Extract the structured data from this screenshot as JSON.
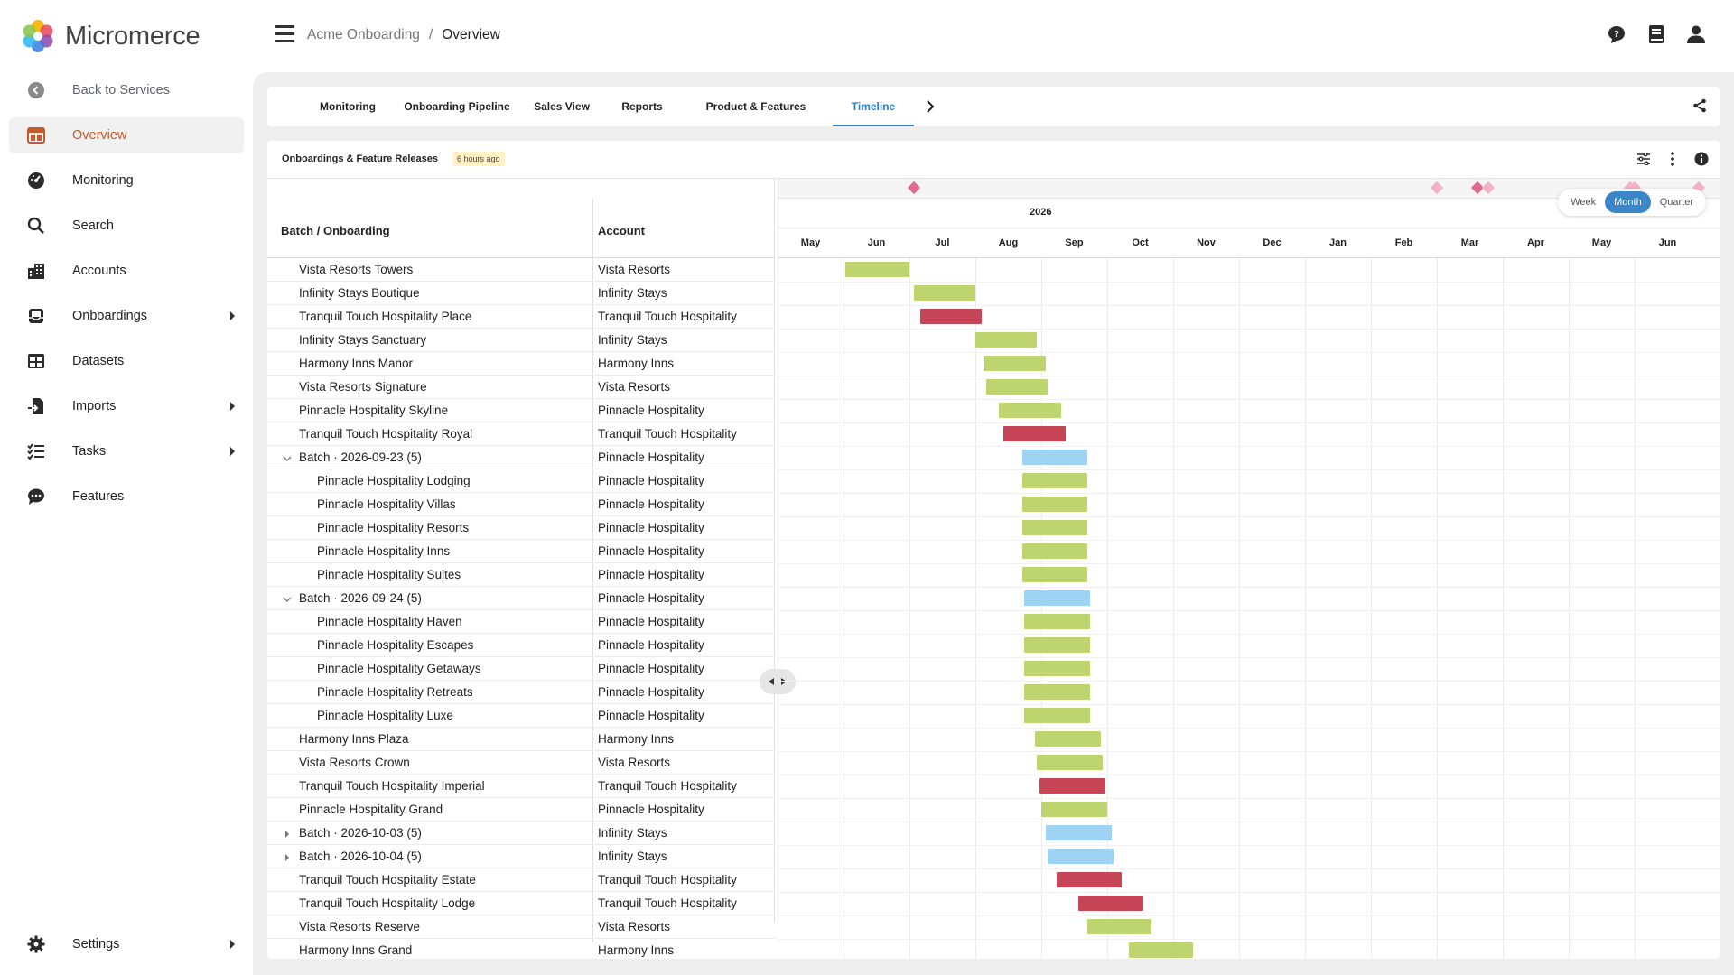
{
  "app": {
    "name": "Micromerce"
  },
  "sidebar": {
    "items": [
      {
        "label": "Back to Services",
        "icon": "chevron-left-circle-icon"
      },
      {
        "label": "Overview",
        "icon": "dashboard-icon",
        "active": true
      },
      {
        "label": "Monitoring",
        "icon": "gauge-icon"
      },
      {
        "label": "Search",
        "icon": "search-icon"
      },
      {
        "label": "Accounts",
        "icon": "building-icon"
      },
      {
        "label": "Onboardings",
        "icon": "inbox-icon",
        "expandable": true
      },
      {
        "label": "Datasets",
        "icon": "table-icon"
      },
      {
        "label": "Imports",
        "icon": "import-icon",
        "expandable": true
      },
      {
        "label": "Tasks",
        "icon": "checklist-icon",
        "expandable": true
      },
      {
        "label": "Features",
        "icon": "chat-icon"
      }
    ],
    "settings": {
      "label": "Settings",
      "icon": "gear-icon"
    }
  },
  "header": {
    "breadcrumb": {
      "parent": "Acme Onboarding",
      "separator": "/",
      "current": "Overview"
    },
    "icons": [
      "feedback-icon",
      "docs-icon",
      "user-icon"
    ]
  },
  "tabs": {
    "items": [
      {
        "label": "Monitoring"
      },
      {
        "label": "Onboarding Pipeline"
      },
      {
        "label": "Sales View"
      },
      {
        "label": "Reports"
      },
      {
        "label": "Product & Features"
      },
      {
        "label": "Timeline",
        "active": true
      }
    ]
  },
  "panel": {
    "title": "Onboardings & Feature Releases",
    "badge": "6 hours ago",
    "columns": {
      "name": "Batch / Onboarding",
      "account": "Account"
    },
    "view_toggle": {
      "week": "Week",
      "month": "Month",
      "quarter": "Quarter",
      "selected": "Month"
    },
    "year": "2026",
    "months": [
      "May",
      "Jun",
      "Jul",
      "Aug",
      "Sep",
      "Oct",
      "Nov",
      "Dec",
      "Jan",
      "Feb",
      "Mar",
      "Apr",
      "May",
      "Jun"
    ],
    "colors": {
      "onboarding": "#bed46f",
      "at_risk": "#c64658",
      "batch": "#9fd3f3",
      "milestone": "#e06a8e"
    },
    "rows": [
      {
        "name": "Vista Resorts Towers",
        "account": "Vista Resorts",
        "kind": "green",
        "start": "2025-06-02",
        "end": "2025-07-01"
      },
      {
        "name": "Infinity Stays Boutique",
        "account": "Infinity Stays",
        "kind": "green",
        "start": "2025-07-03",
        "end": "2025-08-01"
      },
      {
        "name": "Tranquil Touch Hospitality Place",
        "account": "Tranquil Touch Hospitality",
        "kind": "red",
        "start": "2025-07-06",
        "end": "2025-08-04"
      },
      {
        "name": "Infinity Stays Sanctuary",
        "account": "Infinity Stays",
        "kind": "green",
        "start": "2025-08-01",
        "end": "2025-08-30"
      },
      {
        "name": "Harmony Inns Manor",
        "account": "Harmony Inns",
        "kind": "green",
        "start": "2025-08-05",
        "end": "2025-09-03"
      },
      {
        "name": "Vista Resorts Signature",
        "account": "Vista Resorts",
        "kind": "green",
        "start": "2025-08-06",
        "end": "2025-09-04"
      },
      {
        "name": "Pinnacle Hospitality Skyline",
        "account": "Pinnacle Hospitality",
        "kind": "green",
        "start": "2025-08-12",
        "end": "2025-09-10"
      },
      {
        "name": "Tranquil Touch Hospitality Royal",
        "account": "Tranquil Touch Hospitality",
        "kind": "red",
        "start": "2025-08-14",
        "end": "2025-09-12"
      },
      {
        "name": "Batch · 2026-09-23 (5)",
        "account": "Pinnacle Hospitality",
        "kind": "blue",
        "group": "expanded",
        "start": "2025-08-23",
        "end": "2025-09-22"
      },
      {
        "name": "Pinnacle Hospitality Lodging",
        "account": "Pinnacle Hospitality",
        "kind": "green",
        "child": true,
        "start": "2025-08-23",
        "end": "2025-09-22"
      },
      {
        "name": "Pinnacle Hospitality Villas",
        "account": "Pinnacle Hospitality",
        "kind": "green",
        "child": true,
        "start": "2025-08-23",
        "end": "2025-09-22"
      },
      {
        "name": "Pinnacle Hospitality Resorts",
        "account": "Pinnacle Hospitality",
        "kind": "green",
        "child": true,
        "start": "2025-08-23",
        "end": "2025-09-22"
      },
      {
        "name": "Pinnacle Hospitality Inns",
        "account": "Pinnacle Hospitality",
        "kind": "green",
        "child": true,
        "start": "2025-08-23",
        "end": "2025-09-22"
      },
      {
        "name": "Pinnacle Hospitality Suites",
        "account": "Pinnacle Hospitality",
        "kind": "green",
        "child": true,
        "start": "2025-08-23",
        "end": "2025-09-22"
      },
      {
        "name": "Batch · 2026-09-24 (5)",
        "account": "Pinnacle Hospitality",
        "kind": "blue",
        "group": "expanded",
        "start": "2025-08-24",
        "end": "2025-09-23"
      },
      {
        "name": "Pinnacle Hospitality Haven",
        "account": "Pinnacle Hospitality",
        "kind": "green",
        "child": true,
        "start": "2025-08-24",
        "end": "2025-09-23"
      },
      {
        "name": "Pinnacle Hospitality Escapes",
        "account": "Pinnacle Hospitality",
        "kind": "green",
        "child": true,
        "start": "2025-08-24",
        "end": "2025-09-23"
      },
      {
        "name": "Pinnacle Hospitality Getaways",
        "account": "Pinnacle Hospitality",
        "kind": "green",
        "child": true,
        "start": "2025-08-24",
        "end": "2025-09-23"
      },
      {
        "name": "Pinnacle Hospitality Retreats",
        "account": "Pinnacle Hospitality",
        "kind": "green",
        "child": true,
        "start": "2025-08-24",
        "end": "2025-09-23"
      },
      {
        "name": "Pinnacle Hospitality Luxe",
        "account": "Pinnacle Hospitality",
        "kind": "green",
        "child": true,
        "start": "2025-08-24",
        "end": "2025-09-23"
      },
      {
        "name": "Harmony Inns Plaza",
        "account": "Harmony Inns",
        "kind": "green",
        "start": "2025-08-29",
        "end": "2025-09-28"
      },
      {
        "name": "Vista Resorts Crown",
        "account": "Vista Resorts",
        "kind": "green",
        "start": "2025-08-30",
        "end": "2025-09-29"
      },
      {
        "name": "Tranquil Touch Hospitality Imperial",
        "account": "Tranquil Touch Hospitality",
        "kind": "red",
        "start": "2025-08-31",
        "end": "2025-09-30"
      },
      {
        "name": "Pinnacle Hospitality Grand",
        "account": "Pinnacle Hospitality",
        "kind": "green",
        "start": "2025-09-01",
        "end": "2025-10-01"
      },
      {
        "name": "Batch · 2026-10-03 (5)",
        "account": "Infinity Stays",
        "kind": "blue",
        "group": "collapsed",
        "start": "2025-09-03",
        "end": "2025-10-03"
      },
      {
        "name": "Batch · 2026-10-04 (5)",
        "account": "Infinity Stays",
        "kind": "blue",
        "group": "collapsed",
        "start": "2025-09-04",
        "end": "2025-10-04"
      },
      {
        "name": "Tranquil Touch Hospitality Estate",
        "account": "Tranquil Touch Hospitality",
        "kind": "red",
        "start": "2025-09-08",
        "end": "2025-10-08"
      },
      {
        "name": "Tranquil Touch Hospitality Lodge",
        "account": "Tranquil Touch Hospitality",
        "kind": "red",
        "start": "2025-09-18",
        "end": "2025-10-18"
      },
      {
        "name": "Vista Resorts Reserve",
        "account": "Vista Resorts",
        "kind": "green",
        "start": "2025-09-22",
        "end": "2025-10-22"
      },
      {
        "name": "Harmony Inns Grand",
        "account": "Harmony Inns",
        "kind": "green",
        "start": "2025-10-11",
        "end": "2025-11-10"
      }
    ],
    "milestones": [
      {
        "date": "2025-07-03",
        "filled": true
      },
      {
        "date": "2026-03-01",
        "filled": false
      },
      {
        "date": "2026-03-20",
        "filled": true
      },
      {
        "date": "2026-03-25",
        "filled": false
      },
      {
        "date": "2026-05-30",
        "filled": false
      },
      {
        "date": "2026-06-01",
        "filled": false
      },
      {
        "date": "2026-06-30",
        "filled": false
      }
    ]
  }
}
